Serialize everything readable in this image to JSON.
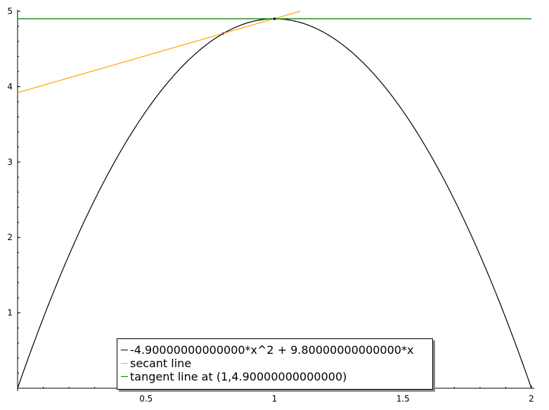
{
  "chart_data": {
    "type": "line",
    "xlim": [
      0,
      2
    ],
    "ylim": [
      0,
      5
    ],
    "x_ticks": [
      {
        "value": 0.5,
        "label": "0.5"
      },
      {
        "value": 1,
        "label": "1"
      },
      {
        "value": 1.5,
        "label": "1.5"
      },
      {
        "value": 2,
        "label": "2"
      }
    ],
    "y_ticks": [
      {
        "value": 1,
        "label": "1"
      },
      {
        "value": 2,
        "label": "2"
      },
      {
        "value": 3,
        "label": "3"
      },
      {
        "value": 4,
        "label": "4"
      },
      {
        "value": 5,
        "label": "5"
      }
    ],
    "x_minor_step": 0.1,
    "y_minor_step": 0.2,
    "grid": false,
    "legend_position": "bottom-center",
    "series": [
      {
        "name": "-4.90000000000000*x^2 + 9.80000000000000*x",
        "color": "#000000",
        "function": {
          "a": -4.9,
          "b": 9.8,
          "c": 0
        },
        "x_range": [
          0,
          2
        ]
      },
      {
        "name": "secant line",
        "color": "#ffa500",
        "points": [
          {
            "x": 0,
            "y": 3.92
          },
          {
            "x": 1.1,
            "y": 5.0
          }
        ]
      },
      {
        "name": "tangent line at (1,4.90000000000000)",
        "color": "#008000",
        "points": [
          {
            "x": 0,
            "y": 4.9
          },
          {
            "x": 2,
            "y": 4.9
          }
        ]
      }
    ],
    "markers": [
      {
        "x": 0.8,
        "y": 4.704,
        "color": "#8040a0"
      },
      {
        "x": 1.0,
        "y": 4.9,
        "color": "#000000"
      }
    ]
  }
}
